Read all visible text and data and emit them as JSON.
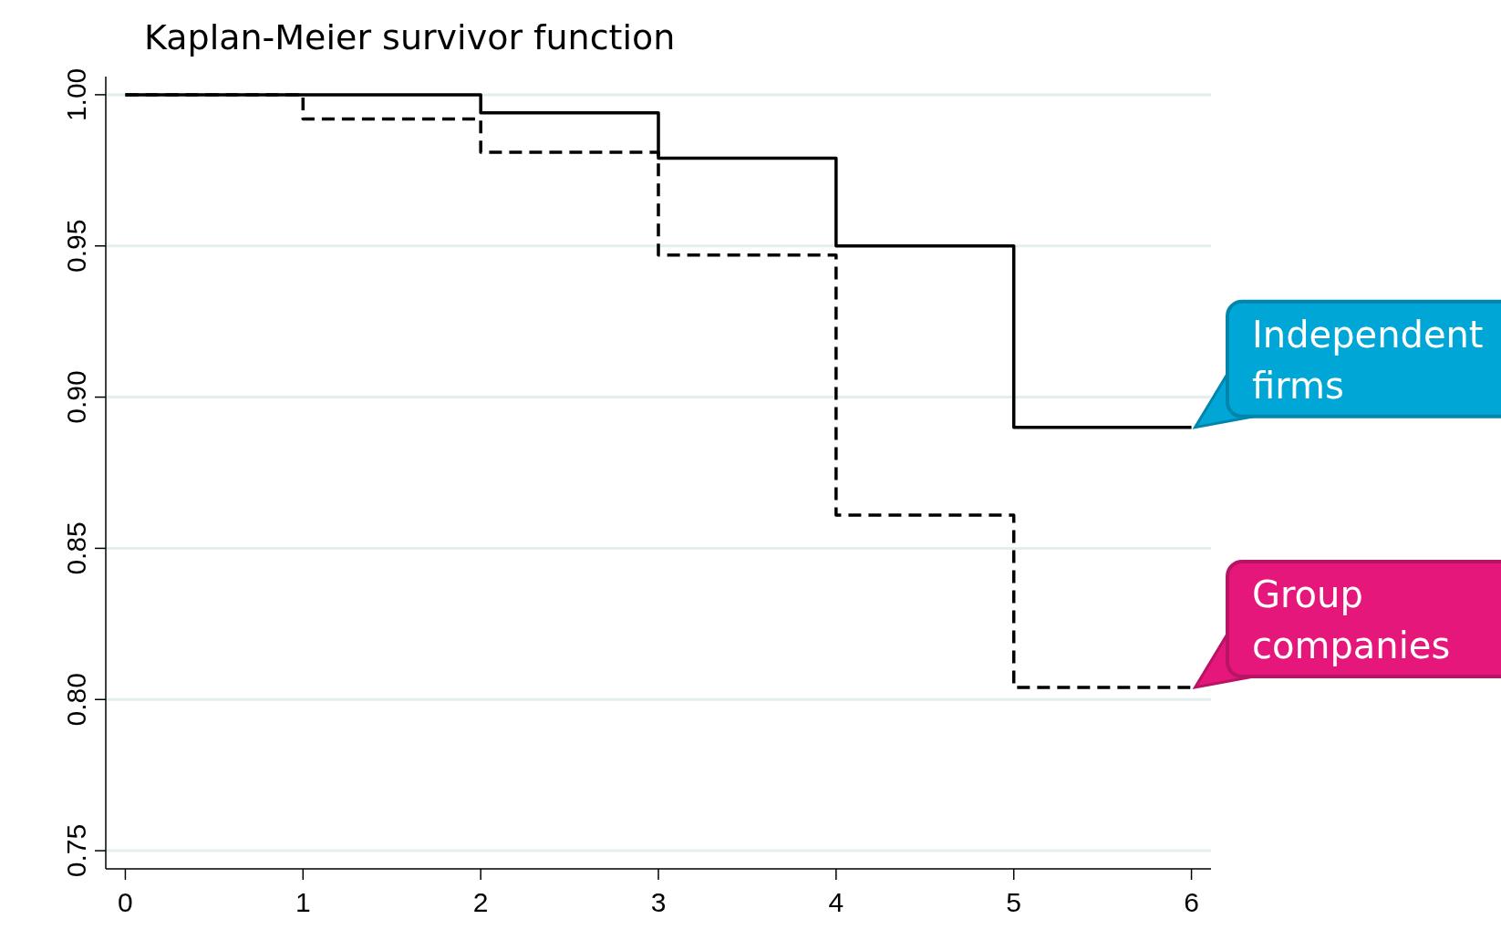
{
  "chart_data": {
    "type": "step",
    "title": "Kaplan-Meier survivor function",
    "x": [
      0,
      1,
      2,
      3,
      4,
      5,
      6
    ],
    "series": [
      {
        "name": "Independent firms",
        "color": "#000000",
        "line_style": "solid",
        "values": [
          1,
          1,
          0.994,
          0.979,
          0.95,
          0.89,
          0.89
        ]
      },
      {
        "name": "Group companies",
        "color": "#000000",
        "line_style": "dashed",
        "values": [
          1,
          0.992,
          0.981,
          0.947,
          0.861,
          0.804,
          0.804
        ]
      }
    ],
    "xlim": [
      -0.11,
      6.11
    ],
    "xticks": [
      0,
      1,
      2,
      3,
      4,
      5,
      6
    ],
    "ylim": [
      0.744,
      1.006
    ],
    "yticks": [
      0.75,
      {
        "value": 0.8,
        "label": "0.80"
      },
      0.85,
      {
        "value": 0.9,
        "label": "0.90"
      },
      0.95,
      {
        "value": 1,
        "label": "1.00"
      }
    ],
    "grid": "y"
  }
}
